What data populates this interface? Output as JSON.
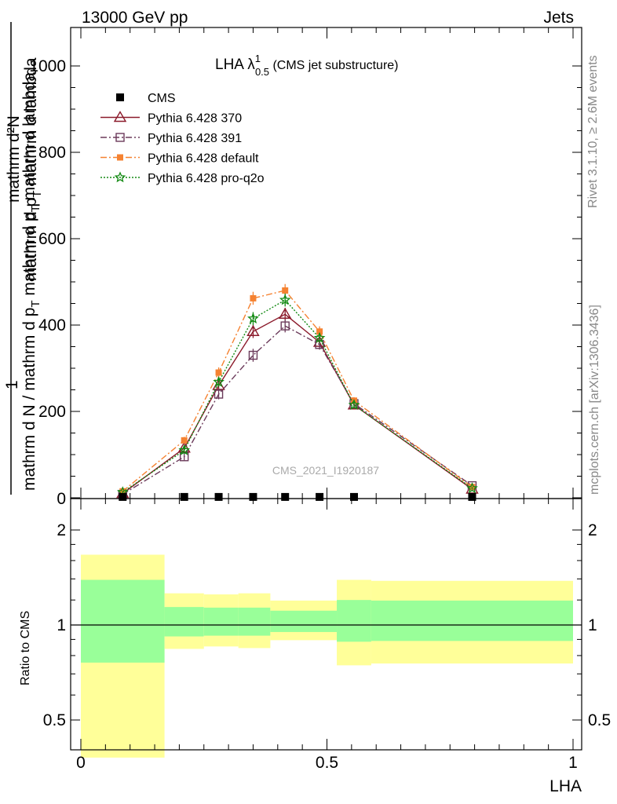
{
  "header": {
    "left": "13000 GeV pp",
    "right": "Jets"
  },
  "side_labels": {
    "rivet": "Rivet 3.1.10, ≥ 2.6M events",
    "mcplots": "mcplots.cern.ch [arXiv:1306.3436]"
  },
  "plot_title": {
    "main": "LHA λ",
    "sup": "1",
    "sub": "0.5",
    "suffix": " (CMS jet substructure)"
  },
  "watermark": "CMS_2021_I1920187",
  "ylabel_top": {
    "line1": "mathrm d²N",
    "line2": "mathrm d p",
    "line2_sub": "T",
    "line2_rest": " mathrm d lambda",
    "one": "1",
    "den": "mathrm d N / mathrm d p",
    "den_sub": "T",
    "den_rest": " mathrm d p",
    "den_sub2": "T",
    "den_rest2": " mathrm d lambda"
  },
  "ylabel_ratio": "Ratio to CMS",
  "xlabel": "LHA",
  "legend": [
    "CMS",
    "Pythia 6.428 370",
    "Pythia 6.428 391",
    "Pythia 6.428 default",
    "Pythia 6.428 pro-q2o"
  ],
  "colors": {
    "cms": "#000000",
    "p370": "#8b1a2b",
    "p391": "#6b3a5a",
    "default": "#f58231",
    "proq2o": "#138a13",
    "band_inner": "#99ff99",
    "band_outer": "#ffff99"
  },
  "chart_data": [
    {
      "type": "line",
      "xlim": [
        0,
        1
      ],
      "ylim": [
        0,
        1000
      ],
      "yticks": [
        200,
        400,
        600,
        800,
        1000
      ],
      "ytick_labels": [
        "200",
        "400",
        "600",
        "800",
        "1000"
      ],
      "extra_ytick_label": "0",
      "series": [
        {
          "name": "CMS",
          "marker": "square",
          "x": [
            0.085,
            0.21,
            0.28,
            0.35,
            0.415,
            0.485,
            0.555,
            0.795
          ],
          "y": [
            2,
            2,
            2,
            2,
            2,
            2,
            2,
            2
          ]
        },
        {
          "name": "Pythia 6.428 370",
          "marker": "triangle",
          "x": [
            0.085,
            0.21,
            0.28,
            0.35,
            0.415,
            0.485,
            0.555,
            0.795
          ],
          "y": [
            10,
            115,
            260,
            385,
            425,
            360,
            215,
            20
          ],
          "err": [
            3,
            8,
            12,
            15,
            15,
            12,
            8,
            3
          ]
        },
        {
          "name": "Pythia 6.428 391",
          "marker": "open-square",
          "x": [
            0.085,
            0.21,
            0.28,
            0.35,
            0.415,
            0.485,
            0.555,
            0.795
          ],
          "y": [
            8,
            95,
            240,
            330,
            398,
            355,
            218,
            28
          ],
          "err": [
            3,
            8,
            12,
            15,
            15,
            12,
            8,
            3
          ]
        },
        {
          "name": "Pythia 6.428 default",
          "marker": "filled-square",
          "x": [
            0.085,
            0.21,
            0.28,
            0.35,
            0.415,
            0.485,
            0.555,
            0.795
          ],
          "y": [
            15,
            133,
            290,
            462,
            480,
            385,
            225,
            25
          ],
          "err": [
            3,
            8,
            12,
            15,
            15,
            12,
            8,
            3
          ]
        },
        {
          "name": "Pythia 6.428 pro-q2o",
          "marker": "star",
          "x": [
            0.085,
            0.21,
            0.28,
            0.35,
            0.415,
            0.485,
            0.555,
            0.795
          ],
          "y": [
            13,
            110,
            268,
            415,
            458,
            370,
            215,
            22
          ],
          "err": [
            3,
            8,
            12,
            15,
            15,
            12,
            8,
            3
          ]
        }
      ]
    },
    {
      "type": "area",
      "ylim": [
        0.4,
        2.3
      ],
      "yticks": [
        0.5,
        1,
        2
      ],
      "ytick_labels": [
        "0.5",
        "1",
        "2"
      ],
      "xticks": [
        0,
        0.5,
        1
      ],
      "xtick_labels": [
        "0",
        "0.5",
        "1"
      ],
      "reference": 1,
      "bins": [
        {
          "lo": 0.0,
          "hi": 0.17,
          "inner": [
            0.76,
            1.39
          ],
          "outer": [
            0.38,
            1.67
          ]
        },
        {
          "lo": 0.17,
          "hi": 0.25,
          "inner": [
            0.92,
            1.14
          ],
          "outer": [
            0.84,
            1.26
          ]
        },
        {
          "lo": 0.25,
          "hi": 0.32,
          "inner": [
            0.925,
            1.135
          ],
          "outer": [
            0.855,
            1.25
          ]
        },
        {
          "lo": 0.32,
          "hi": 0.385,
          "inner": [
            0.925,
            1.135
          ],
          "outer": [
            0.845,
            1.26
          ]
        },
        {
          "lo": 0.385,
          "hi": 0.52,
          "inner": [
            0.95,
            1.11
          ],
          "outer": [
            0.895,
            1.195
          ]
        },
        {
          "lo": 0.52,
          "hi": 0.59,
          "inner": [
            0.885,
            1.2
          ],
          "outer": [
            0.745,
            1.39
          ]
        },
        {
          "lo": 0.59,
          "hi": 1.0,
          "inner": [
            0.89,
            1.195
          ],
          "outer": [
            0.755,
            1.38
          ]
        }
      ]
    }
  ]
}
